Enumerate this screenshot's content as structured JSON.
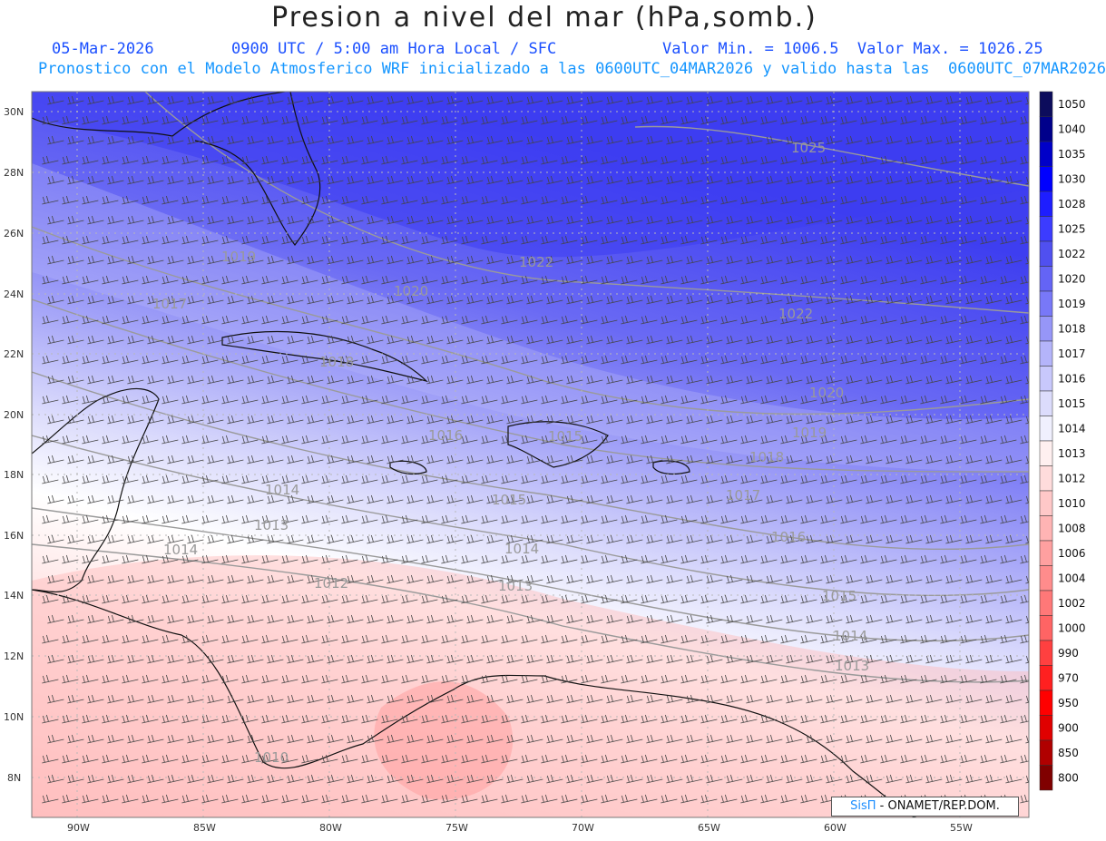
{
  "header": {
    "title": "Presion a nivel del mar (hPa,somb.)",
    "date": "05-Mar-2026",
    "time": "0900 UTC / 5:00 am Hora Local / SFC",
    "minmax": "Valor Min. = 1006.5  Valor Max. = 1026.25",
    "forecast": "Pronostico con el Modelo Atmosferico WRF inicializado a las 0600UTC_04MAR2026 y valido hasta las  0600UTC_07MAR2026"
  },
  "map": {
    "lat_labels": [
      "30N",
      "28N",
      "26N",
      "24N",
      "22N",
      "20N",
      "18N",
      "16N",
      "14N",
      "12N",
      "10N",
      "8N"
    ],
    "lon_labels": [
      "90W",
      "85W",
      "80W",
      "75W",
      "70W",
      "65W",
      "60W",
      "55W"
    ],
    "contour_labels": [
      "1025",
      "1022",
      "1022",
      "1020",
      "1020",
      "1019",
      "1019",
      "1018",
      "1018",
      "1017",
      "1017",
      "1016",
      "1016",
      "1015",
      "1015",
      "1015",
      "1014",
      "1014",
      "1014",
      "1014",
      "1013",
      "1013",
      "1013",
      "1012",
      "1010"
    ]
  },
  "colorbar": {
    "levels": [
      "1050",
      "1040",
      "1035",
      "1030",
      "1028",
      "1025",
      "1022",
      "1020",
      "1019",
      "1018",
      "1017",
      "1016",
      "1015",
      "1014",
      "1013",
      "1012",
      "1010",
      "1008",
      "1006",
      "1004",
      "1002",
      "1000",
      "990",
      "970",
      "950",
      "900",
      "850",
      "800"
    ],
    "colors": [
      "#0c0c5c",
      "#00008b",
      "#0000c8",
      "#0000ff",
      "#1e1eff",
      "#3c3cff",
      "#5050f0",
      "#6464f5",
      "#7878f8",
      "#9696f8",
      "#b4b4fa",
      "#c8c8fc",
      "#dcdcfc",
      "#f0f0fe",
      "#fff0f0",
      "#ffdcdc",
      "#ffc8c8",
      "#ffb4b4",
      "#ffa0a0",
      "#ff8c8c",
      "#ff7878",
      "#ff6464",
      "#ff4040",
      "#ff2020",
      "#ff0000",
      "#e00000",
      "#b00000",
      "#800000"
    ]
  },
  "credit": {
    "brand": "SisΠ",
    "text": " - ONAMET/REP.DOM."
  }
}
